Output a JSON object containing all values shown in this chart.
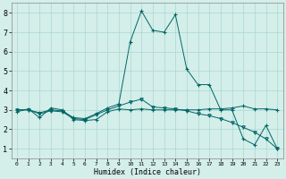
{
  "xlabel": "Humidex (Indice chaleur)",
  "bg_color": "#d4eeea",
  "line_color": "#006666",
  "grid_color": "#aad8d0",
  "x_ticks": [
    0,
    1,
    2,
    3,
    4,
    5,
    6,
    7,
    8,
    9,
    10,
    11,
    12,
    13,
    14,
    15,
    16,
    17,
    18,
    19,
    20,
    21,
    22,
    23
  ],
  "y_ticks": [
    1,
    2,
    3,
    4,
    5,
    6,
    7,
    8
  ],
  "xlim": [
    -0.5,
    23.5
  ],
  "ylim": [
    0.5,
    8.5
  ],
  "line1_x": [
    0,
    1,
    2,
    3,
    4,
    5,
    6,
    7,
    8,
    9,
    10,
    11,
    12,
    13,
    14,
    15,
    16,
    17,
    18,
    19,
    20,
    21,
    22,
    23
  ],
  "line1_y": [
    2.9,
    3.05,
    2.6,
    3.1,
    3.0,
    2.5,
    2.45,
    2.5,
    2.9,
    3.05,
    3.0,
    3.05,
    3.0,
    3.0,
    3.0,
    3.0,
    3.0,
    3.05,
    3.05,
    3.1,
    3.2,
    3.05,
    3.05,
    3.0
  ],
  "line2_x": [
    0,
    1,
    2,
    3,
    4,
    5,
    6,
    7,
    8,
    9,
    10,
    11,
    12,
    13,
    14,
    15,
    16,
    17,
    18,
    19,
    20,
    21,
    22,
    23
  ],
  "line2_y": [
    3.0,
    3.0,
    2.85,
    3.0,
    2.95,
    2.6,
    2.55,
    2.8,
    3.1,
    3.3,
    6.5,
    8.1,
    7.1,
    7.0,
    7.9,
    5.1,
    4.3,
    4.3,
    3.0,
    3.0,
    1.5,
    1.2,
    2.2,
    1.0
  ],
  "line3_x": [
    0,
    1,
    2,
    3,
    4,
    5,
    6,
    7,
    8,
    9,
    10,
    11,
    12,
    13,
    14,
    15,
    16,
    17,
    18,
    19,
    20,
    21,
    22,
    23
  ],
  "line3_y": [
    3.0,
    3.0,
    2.8,
    2.95,
    2.9,
    2.55,
    2.5,
    2.75,
    3.0,
    3.2,
    3.4,
    3.55,
    3.15,
    3.1,
    3.05,
    2.95,
    2.8,
    2.7,
    2.55,
    2.35,
    2.1,
    1.85,
    1.5,
    1.0
  ],
  "xlabel_fontsize": 6,
  "ytick_fontsize": 6,
  "xtick_fontsize": 4.5
}
